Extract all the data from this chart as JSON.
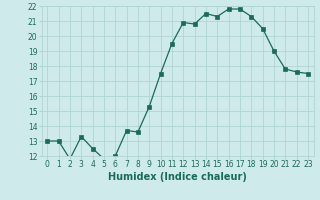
{
  "x": [
    0,
    1,
    2,
    3,
    4,
    5,
    6,
    7,
    8,
    9,
    10,
    11,
    12,
    13,
    14,
    15,
    16,
    17,
    18,
    19,
    20,
    21,
    22,
    23
  ],
  "y": [
    13,
    13,
    11.8,
    13.3,
    12.5,
    11.8,
    12,
    13.7,
    13.6,
    15.3,
    17.5,
    19.5,
    20.9,
    20.8,
    21.5,
    21.3,
    21.8,
    21.8,
    21.3,
    20.5,
    19,
    17.8,
    17.6,
    17.5
  ],
  "line_color": "#1a6b5a",
  "marker": "s",
  "marker_size": 2.2,
  "bg_color": "#ceeaea",
  "grid_color": "#b0d4d4",
  "xlabel": "Humidex (Indice chaleur)",
  "ylim": [
    12,
    22
  ],
  "xlim": [
    -0.5,
    23.5
  ],
  "yticks": [
    12,
    13,
    14,
    15,
    16,
    17,
    18,
    19,
    20,
    21,
    22
  ],
  "xticks": [
    0,
    1,
    2,
    3,
    4,
    5,
    6,
    7,
    8,
    9,
    10,
    11,
    12,
    13,
    14,
    15,
    16,
    17,
    18,
    19,
    20,
    21,
    22,
    23
  ],
  "tick_fontsize": 5.5,
  "label_fontsize": 7,
  "title_color": "#1a6b5a"
}
